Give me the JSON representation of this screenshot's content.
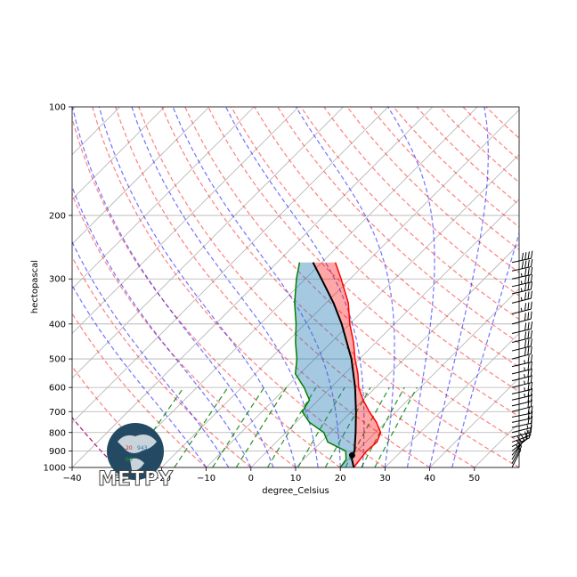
{
  "chart_data": {
    "type": "skew-t",
    "xlabel": "degree_Celsius",
    "ylabel": "hectopascal",
    "xlim": [
      -40,
      60
    ],
    "ylim": [
      1000,
      100
    ],
    "x_ticks": [
      -40,
      -30,
      -20,
      -10,
      0,
      10,
      20,
      30,
      40,
      50
    ],
    "x_tick_labels": [
      "−40",
      "−30",
      "−20",
      "−10",
      "0",
      "10",
      "20",
      "30",
      "40",
      "50"
    ],
    "y_ticks": [
      100,
      200,
      300,
      400,
      500,
      600,
      700,
      800,
      900,
      1000
    ],
    "y_tick_labels": [
      "100",
      "200",
      "300",
      "400",
      "500",
      "600",
      "700",
      "800",
      "900",
      "1000"
    ],
    "grid": true,
    "series": [
      {
        "kind": "temperature",
        "color": "#ff0000",
        "points": [
          [
            1000,
            23
          ],
          [
            950,
            22.6
          ],
          [
            900,
            22.2
          ],
          [
            850,
            22.5
          ],
          [
            800,
            21.2
          ],
          [
            750,
            18
          ],
          [
            700,
            14
          ],
          [
            650,
            10
          ],
          [
            600,
            6.2
          ],
          [
            550,
            3
          ],
          [
            500,
            -1
          ],
          [
            450,
            -5
          ],
          [
            400,
            -10
          ],
          [
            350,
            -15
          ],
          [
            300,
            -22
          ],
          [
            270,
            -27
          ]
        ]
      },
      {
        "kind": "dewpoint",
        "color": "#008000",
        "points": [
          [
            1000,
            20
          ],
          [
            950,
            19.5
          ],
          [
            900,
            17.5
          ],
          [
            850,
            11.5
          ],
          [
            800,
            8.5
          ],
          [
            750,
            3
          ],
          [
            700,
            -1
          ],
          [
            650,
            -2
          ],
          [
            600,
            -6
          ],
          [
            550,
            -11
          ],
          [
            500,
            -14
          ],
          [
            450,
            -18
          ],
          [
            400,
            -22
          ],
          [
            350,
            -27
          ],
          [
            300,
            -32
          ],
          [
            270,
            -35
          ]
        ]
      },
      {
        "kind": "parcel_profile",
        "color": "#000000",
        "points": [
          [
            1000,
            23
          ],
          [
            950,
            20.8
          ],
          [
            925,
            19.9
          ],
          [
            900,
            19.5
          ],
          [
            850,
            17.6
          ],
          [
            800,
            15.6
          ],
          [
            700,
            11.0
          ],
          [
            600,
            5.4
          ],
          [
            500,
            -1.8
          ],
          [
            400,
            -11.8
          ],
          [
            350,
            -18.3
          ],
          [
            300,
            -26.4
          ],
          [
            270,
            -32
          ]
        ]
      }
    ],
    "lcl": {
      "pressure": 925,
      "temperature": 19.9
    },
    "shading": [
      {
        "kind": "CAPE",
        "color": "#ff0000",
        "alpha": 0.35
      },
      {
        "kind": "CIN",
        "color": "#1f77b4",
        "alpha": 0.35
      }
    ],
    "reference_lines": [
      {
        "kind": "dry_adiabats",
        "color": "#ff0000",
        "style": "dashed"
      },
      {
        "kind": "moist_adiabats",
        "color": "#0000ff",
        "style": "dashed"
      },
      {
        "kind": "mixing_ratio",
        "color": "#008000",
        "style": "dashed"
      },
      {
        "kind": "zero_isotherm_lines",
        "color": "#800080",
        "style": "dashed"
      }
    ],
    "wind_barbs": [
      {
        "p": 1000,
        "u": -4,
        "v": -8
      },
      {
        "p": 975,
        "u": -5,
        "v": -9
      },
      {
        "p": 950,
        "u": -6,
        "v": -10
      },
      {
        "p": 925,
        "u": -8,
        "v": -10
      },
      {
        "p": 900,
        "u": -10,
        "v": -8
      },
      {
        "p": 875,
        "u": -12,
        "v": -6
      },
      {
        "p": 850,
        "u": -14,
        "v": -5
      },
      {
        "p": 825,
        "u": -15,
        "v": -4
      },
      {
        "p": 800,
        "u": -16,
        "v": -4
      },
      {
        "p": 775,
        "u": -18,
        "v": -4
      },
      {
        "p": 750,
        "u": -19,
        "v": -4
      },
      {
        "p": 725,
        "u": -20,
        "v": -4
      },
      {
        "p": 700,
        "u": -20,
        "v": -5
      },
      {
        "p": 675,
        "u": -21,
        "v": -5
      },
      {
        "p": 650,
        "u": -22,
        "v": -5
      },
      {
        "p": 625,
        "u": -22,
        "v": -5
      },
      {
        "p": 600,
        "u": -24,
        "v": -6
      },
      {
        "p": 575,
        "u": -24,
        "v": -6
      },
      {
        "p": 550,
        "u": -25,
        "v": -6
      },
      {
        "p": 525,
        "u": -26,
        "v": -6
      },
      {
        "p": 500,
        "u": -27,
        "v": -7
      },
      {
        "p": 475,
        "u": -28,
        "v": -7
      },
      {
        "p": 450,
        "u": -29,
        "v": -7
      },
      {
        "p": 425,
        "u": -30,
        "v": -7
      },
      {
        "p": 400,
        "u": -30,
        "v": -8
      },
      {
        "p": 375,
        "u": -32,
        "v": -8
      },
      {
        "p": 350,
        "u": -33,
        "v": -8
      },
      {
        "p": 330,
        "u": -34,
        "v": -8
      },
      {
        "p": 315,
        "u": -35,
        "v": -8
      },
      {
        "p": 300,
        "u": -36,
        "v": -8
      },
      {
        "p": 285,
        "u": -37,
        "v": -8
      },
      {
        "p": 270,
        "u": -38,
        "v": -8
      }
    ]
  },
  "logo": {
    "text": "METPY",
    "globe_numbers": [
      "20",
      "943",
      "06"
    ]
  }
}
